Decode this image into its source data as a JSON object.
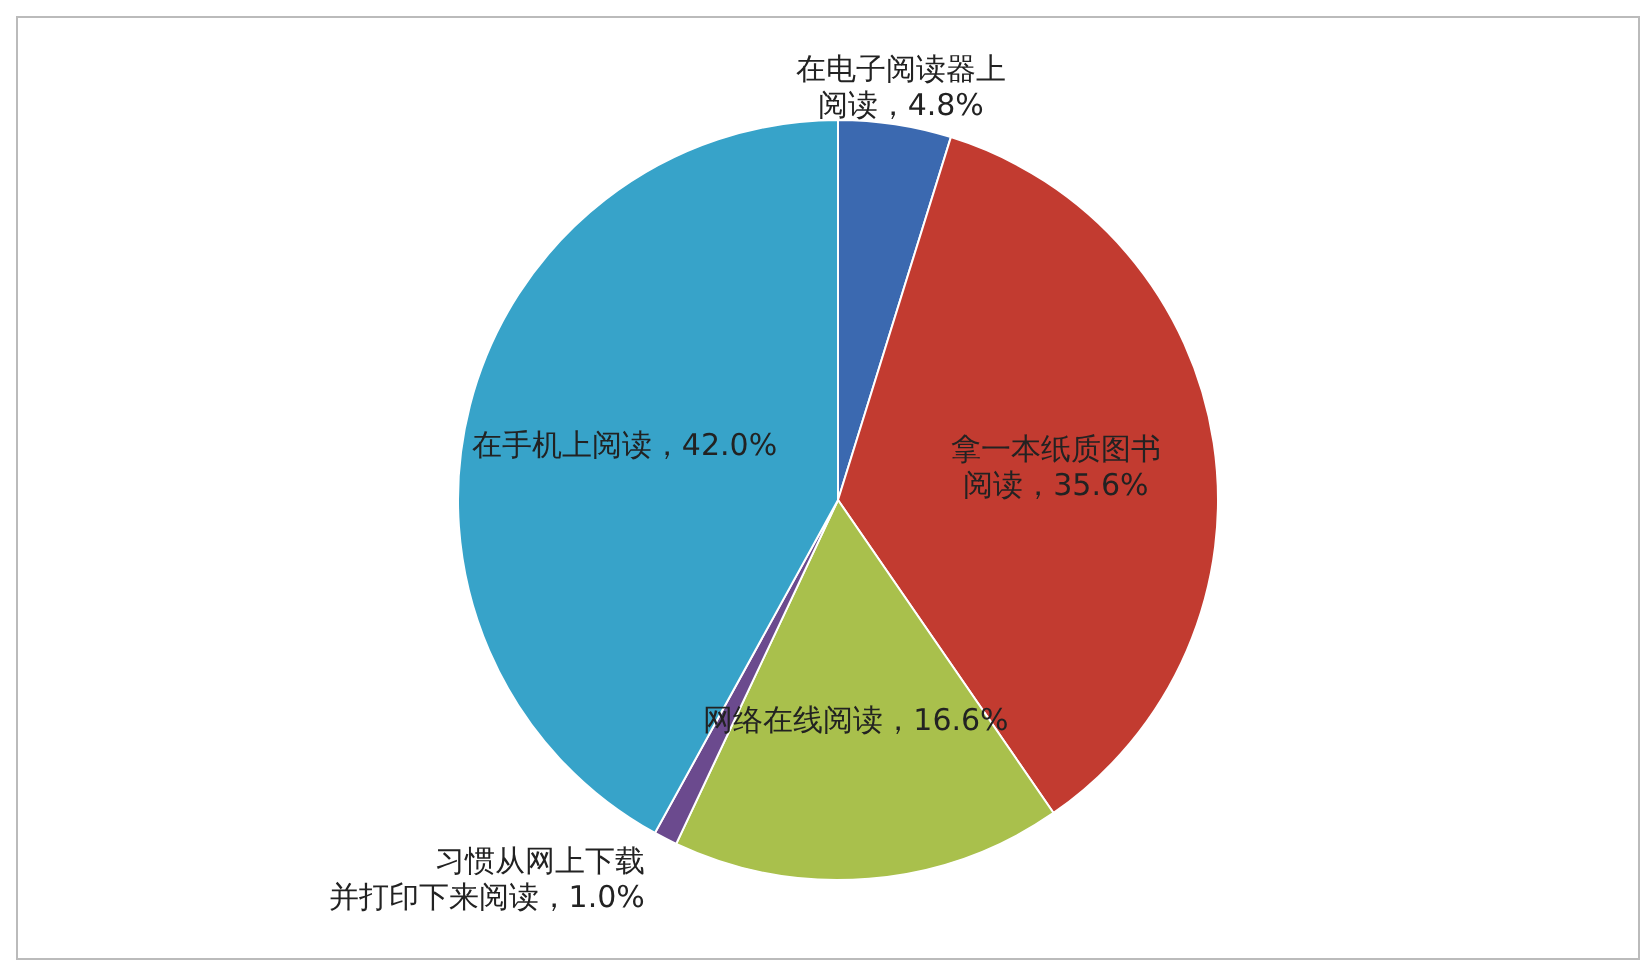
{
  "chart_data": {
    "type": "pie",
    "categories": [
      "在电子阅读器上阅读",
      "拿一本纸质图书阅读",
      "网络在线阅读",
      "习惯从网上下载并打印下来阅读",
      "在手机上阅读"
    ],
    "values": [
      4.8,
      35.6,
      16.6,
      1.0,
      42.0
    ],
    "value_labels": [
      "4.8%",
      "35.6%",
      "16.6%",
      "1.0%",
      "42.0%"
    ],
    "colors": [
      "#3b69b0",
      "#c23b30",
      "#a9c04c",
      "#6b4a8e",
      "#37a3c9"
    ],
    "legend": false
  }
}
